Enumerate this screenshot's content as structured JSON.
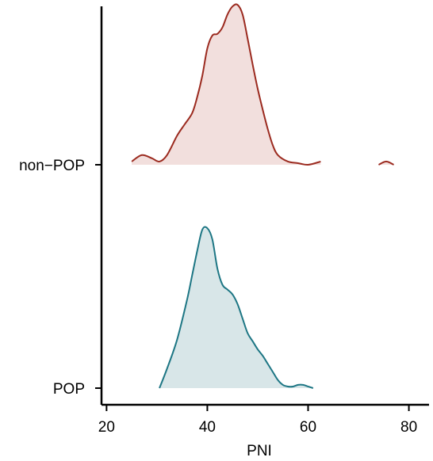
{
  "chart_data": {
    "type": "ridgeline-density",
    "title": "",
    "xlabel": "PNI",
    "ylabel": "",
    "xlim": [
      19,
      84
    ],
    "x_ticks": [
      20,
      40,
      60,
      80
    ],
    "grid": false,
    "legend": "none",
    "series": [
      {
        "name": "non−POP",
        "line_color": "#9b2a1f",
        "fill_color": "#f2dfdd",
        "x": [
          25,
          27,
          29,
          30.5,
          32,
          34,
          35.5,
          37,
          38,
          39,
          40,
          41,
          42,
          43,
          44,
          45,
          46,
          47,
          48,
          49,
          50,
          51,
          52,
          53,
          54,
          56,
          58,
          60,
          62.5
        ],
        "y": [
          0.02,
          0.06,
          0.04,
          0.02,
          0.06,
          0.18,
          0.25,
          0.32,
          0.42,
          0.55,
          0.72,
          0.8,
          0.81,
          0.85,
          0.93,
          0.98,
          0.99,
          0.93,
          0.78,
          0.62,
          0.47,
          0.34,
          0.22,
          0.12,
          0.06,
          0.02,
          0.01,
          0.0,
          0.02
        ]
      },
      {
        "name": "non−POP",
        "line_color": "#9b2a1f",
        "fill_color": "#f2dfdd",
        "x": [
          74,
          75.5,
          77
        ],
        "y": [
          0.0,
          0.02,
          0.0
        ]
      },
      {
        "name": "POP",
        "line_color": "#1d7684",
        "fill_color": "#d8e6e8",
        "x": [
          30.5,
          32,
          34,
          36,
          37,
          38,
          39,
          40,
          41,
          42,
          43,
          44,
          45,
          46,
          47,
          48,
          49,
          50,
          51,
          52,
          53,
          54,
          55,
          56,
          57,
          58,
          59,
          60,
          61
        ],
        "y": [
          0.0,
          0.12,
          0.3,
          0.55,
          0.7,
          0.85,
          0.98,
          0.99,
          0.92,
          0.74,
          0.64,
          0.61,
          0.58,
          0.52,
          0.43,
          0.34,
          0.29,
          0.24,
          0.2,
          0.15,
          0.1,
          0.05,
          0.02,
          0.01,
          0.01,
          0.02,
          0.02,
          0.01,
          0.0
        ]
      }
    ],
    "categories": [
      "POP",
      "non−POP"
    ]
  }
}
